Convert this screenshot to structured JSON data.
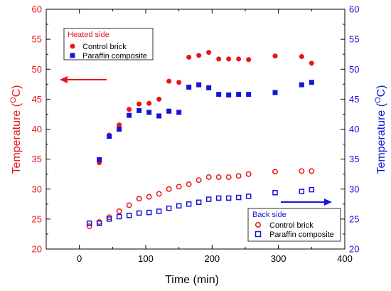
{
  "chart_data": {
    "type": "scatter",
    "xlabel": "Time (min)",
    "ylabel_left": "Temperature (",
    "ylabel_right": "Temperature (",
    "ylabel_super": "O",
    "ylabel_unit": "C)",
    "xlim": [
      -50,
      400
    ],
    "ylim_left": [
      20,
      60
    ],
    "ylim_right": [
      20,
      60
    ],
    "x_ticks": [
      0,
      100,
      200,
      300,
      400
    ],
    "y_ticks_left": [
      20,
      25,
      30,
      35,
      40,
      45,
      50,
      55,
      60
    ],
    "y_ticks_right": [
      20,
      25,
      30,
      35,
      40,
      45,
      50,
      55,
      60
    ],
    "colors": {
      "heated": "#e8151b",
      "back": "#1414d9"
    },
    "legends": [
      {
        "id": "heated",
        "title": "Heated side",
        "title_color": "#e8151b",
        "placement": "top-left",
        "entries": [
          {
            "label": "Control brick",
            "marker": "filled-circle",
            "color": "#e8151b"
          },
          {
            "label": "Paraffin composite",
            "marker": "filled-square",
            "color": "#1414d9"
          }
        ]
      },
      {
        "id": "back",
        "title": "Back side",
        "title_color": "#1414d9",
        "placement": "bottom-right",
        "entries": [
          {
            "label": "Control brick",
            "marker": "open-circle",
            "color": "#e8151b"
          },
          {
            "label": "Paraffin composite",
            "marker": "open-square",
            "color": "#1414d9"
          }
        ]
      }
    ],
    "arrows": [
      {
        "axis": "left",
        "color": "#e8151b",
        "direction": "left"
      },
      {
        "axis": "right",
        "color": "#1414d9",
        "direction": "right"
      }
    ],
    "series": [
      {
        "name": "Heated side - Control brick",
        "marker": "filled-circle",
        "color": "#e8151b",
        "x": [
          30,
          45,
          60,
          75,
          90,
          105,
          120,
          135,
          150,
          165,
          180,
          195,
          210,
          225,
          240,
          255,
          295,
          335,
          350
        ],
        "y": [
          34.4,
          39.0,
          40.7,
          43.3,
          44.2,
          44.3,
          45.0,
          48.0,
          47.8,
          52.0,
          52.3,
          52.8,
          51.7,
          51.7,
          51.7,
          51.6,
          52.2,
          52.1,
          51.0
        ]
      },
      {
        "name": "Heated side - Paraffin composite",
        "marker": "filled-square",
        "color": "#1414d9",
        "x": [
          30,
          45,
          60,
          75,
          90,
          105,
          120,
          135,
          150,
          165,
          180,
          195,
          210,
          225,
          240,
          255,
          295,
          335,
          350
        ],
        "y": [
          34.9,
          38.8,
          40.0,
          42.3,
          43.1,
          42.8,
          42.2,
          43.0,
          42.8,
          47.0,
          47.4,
          46.9,
          45.8,
          45.7,
          45.8,
          45.8,
          46.1,
          47.4,
          47.8
        ]
      },
      {
        "name": "Back side - Control brick",
        "marker": "open-circle",
        "color": "#e8151b",
        "x": [
          15,
          30,
          45,
          60,
          75,
          90,
          105,
          120,
          135,
          150,
          165,
          180,
          195,
          210,
          225,
          240,
          255,
          295,
          335,
          350
        ],
        "y": [
          23.8,
          24.5,
          25.3,
          26.3,
          27.3,
          28.4,
          28.7,
          29.2,
          30.0,
          30.4,
          30.8,
          31.5,
          32.0,
          32.0,
          32.0,
          32.2,
          32.5,
          32.9,
          33.0,
          33.0
        ]
      },
      {
        "name": "Back side - Paraffin composite",
        "marker": "open-square",
        "color": "#1414d9",
        "x": [
          15,
          30,
          45,
          60,
          75,
          90,
          105,
          120,
          135,
          150,
          165,
          180,
          195,
          210,
          225,
          240,
          255,
          295,
          335,
          350
        ],
        "y": [
          24.3,
          24.3,
          25.0,
          25.4,
          25.6,
          26.0,
          26.1,
          26.3,
          26.8,
          27.2,
          27.5,
          27.8,
          28.3,
          28.5,
          28.5,
          28.6,
          28.8,
          29.4,
          29.6,
          29.9
        ]
      }
    ]
  }
}
